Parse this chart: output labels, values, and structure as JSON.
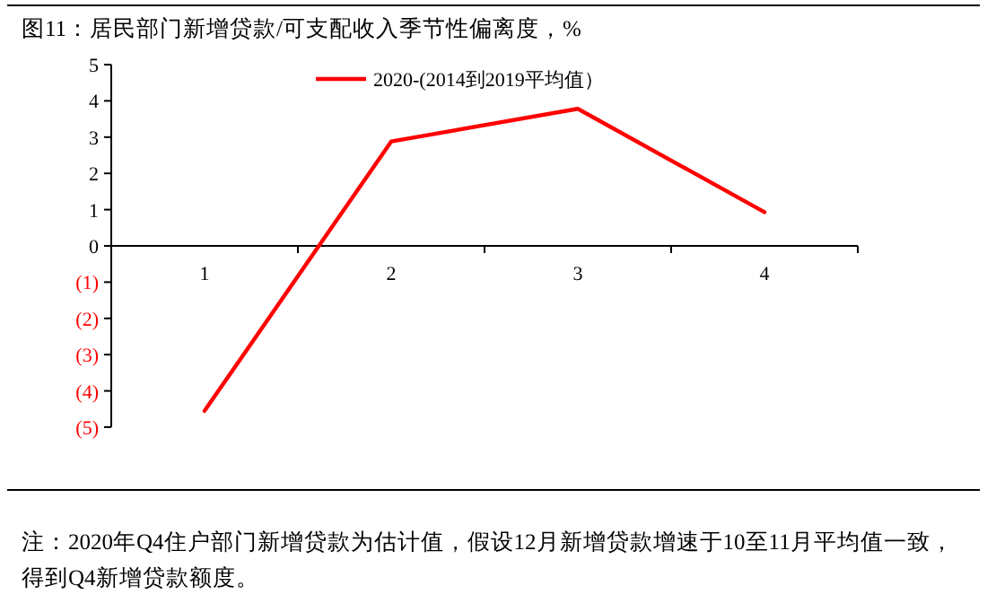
{
  "chart_data": {
    "type": "line",
    "title": "图11：居民部门新增贷款/可支配收入季节性偏离度，%",
    "categories": [
      "1",
      "2",
      "3",
      "4"
    ],
    "series": [
      {
        "name": "2020-(2014到2019平均值）",
        "color": "#ff0000",
        "values": [
          -4.55,
          2.88,
          3.78,
          0.93
        ]
      }
    ],
    "ylim": [
      -5,
      5
    ],
    "yticks": [
      5,
      4,
      3,
      2,
      1,
      0,
      {
        "value": -1,
        "label": "(1)"
      },
      {
        "value": -2,
        "label": "(2)"
      },
      {
        "value": -3,
        "label": "(3)"
      },
      {
        "value": -4,
        "label": "(4)"
      },
      {
        "value": -5,
        "label": "(5)"
      }
    ],
    "legend": "top",
    "grid": false,
    "marker": "none",
    "line_style": "solid",
    "annotations": [
      "注：2020年Q4住户部门新增贷款为估计值，假设12月新增贷款增速于10至11月平均值一致，得到Q4新增贷款额度。"
    ]
  }
}
